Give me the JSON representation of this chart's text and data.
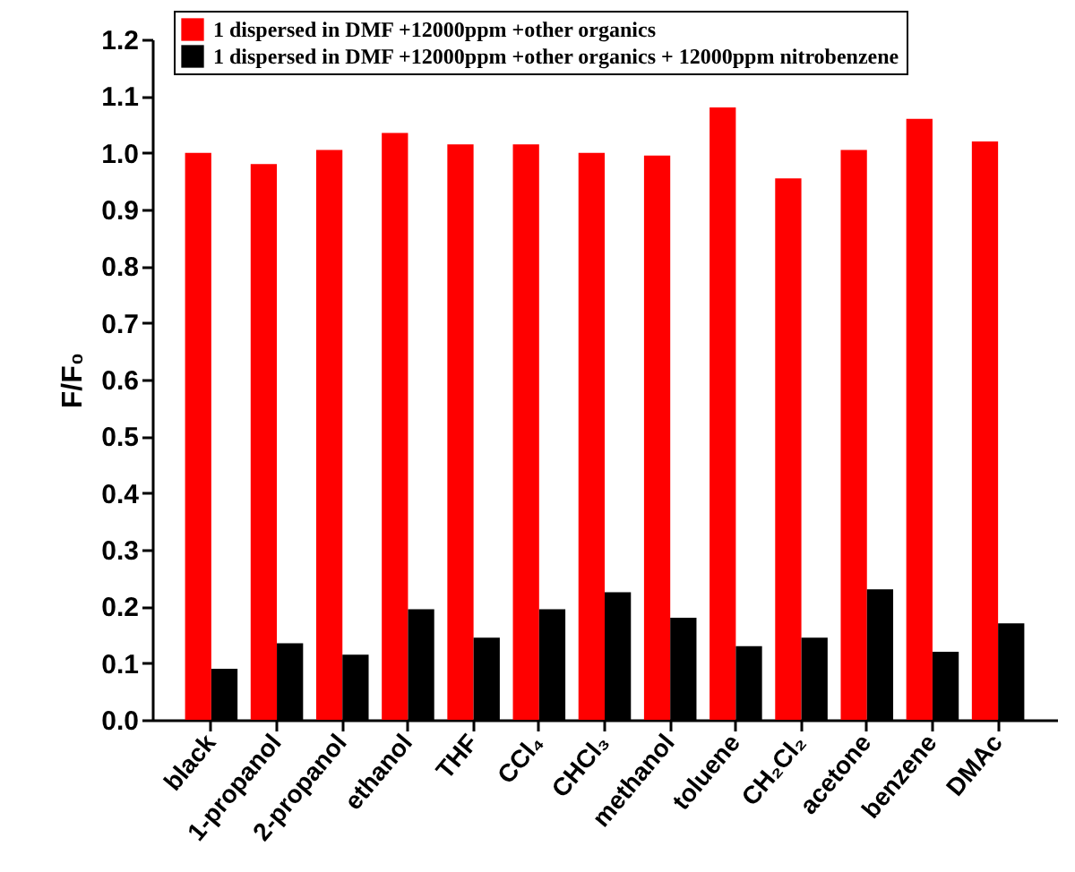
{
  "chart_data": {
    "type": "bar",
    "ylabel": "F/F₀",
    "categories": [
      "black",
      "1-propanol",
      "2-propanol",
      "ethanol",
      "THF",
      "CCl₄",
      "CHCl₃",
      "methanol",
      "toluene",
      "CH₂Cl₂",
      "acetone",
      "benzene",
      "DMAc"
    ],
    "series": [
      {
        "name": "1 dispersed in DMF +12000ppm +other organics",
        "color": "#ff0000",
        "values": [
          1.0,
          0.98,
          1.005,
          1.035,
          1.015,
          1.015,
          1.0,
          0.995,
          1.08,
          0.955,
          1.005,
          1.06,
          1.02
        ]
      },
      {
        "name": "1 dispersed in DMF +12000ppm +other organics + 12000ppm nitrobenzene",
        "color": "#000000",
        "values": [
          0.09,
          0.135,
          0.115,
          0.195,
          0.145,
          0.195,
          0.225,
          0.18,
          0.13,
          0.145,
          0.23,
          0.12,
          0.17
        ]
      }
    ],
    "ylim": [
      0,
      1.2
    ],
    "yticks": [
      {
        "value": 0,
        "label": "0.0"
      },
      {
        "value": 0.1,
        "label": "0.1"
      },
      {
        "value": 0.2,
        "label": "0.2"
      },
      {
        "value": 0.3,
        "label": "0.3"
      },
      {
        "value": 0.4,
        "label": "0.4"
      },
      {
        "value": 0.5,
        "label": "0.5"
      },
      {
        "value": 0.6,
        "label": "0.6"
      },
      {
        "value": 0.7,
        "label": "0.7"
      },
      {
        "value": 0.8,
        "label": "0.8"
      },
      {
        "value": 0.9,
        "label": "0.9"
      },
      {
        "value": 1.0,
        "label": "1.0"
      },
      {
        "value": 1.1,
        "label": "1.1"
      },
      {
        "value": 1.2,
        "label": "1.2"
      }
    ],
    "grid": false,
    "legend": "top"
  }
}
